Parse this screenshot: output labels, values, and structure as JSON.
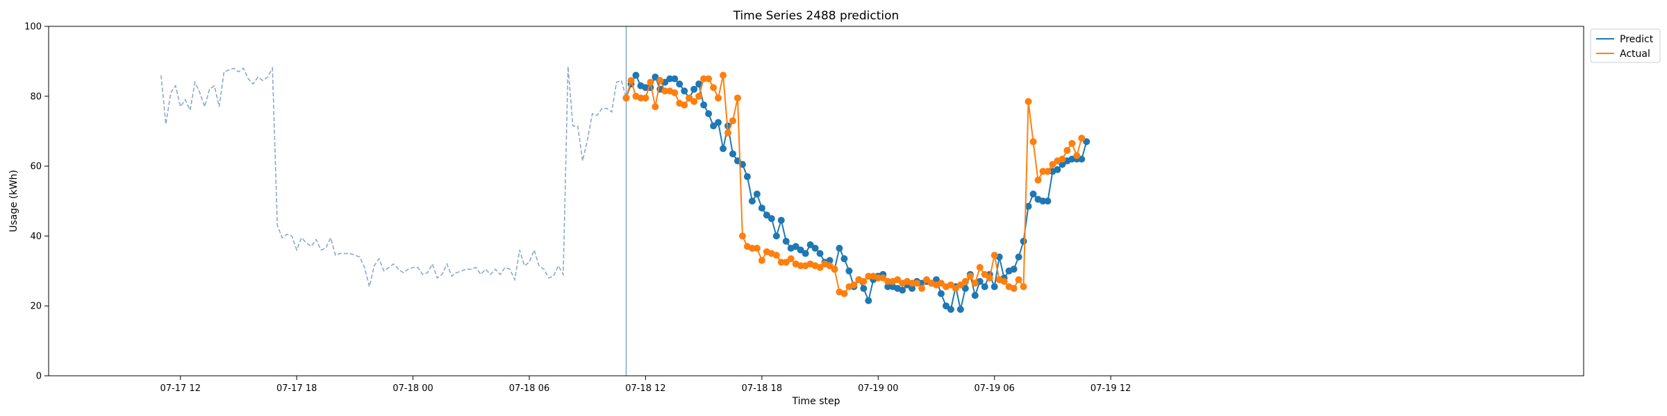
{
  "chart_data": {
    "type": "line",
    "title": "Time Series 2488 prediction",
    "xlabel": "Time step",
    "ylabel": "Usage (kWh)",
    "ylim": [
      0,
      100
    ],
    "yticks": [
      0,
      20,
      40,
      60,
      80,
      100
    ],
    "xlim_hours": [
      -6.8,
      72.4
    ],
    "xticks": [
      {
        "label": "07-17 12",
        "hour": 0
      },
      {
        "label": "07-17 18",
        "hour": 6
      },
      {
        "label": "07-18 00",
        "hour": 12
      },
      {
        "label": "07-18 06",
        "hour": 18
      },
      {
        "label": "07-18 12",
        "hour": 24
      },
      {
        "label": "07-18 18",
        "hour": 30
      },
      {
        "label": "07-19 00",
        "hour": 36
      },
      {
        "label": "07-19 06",
        "hour": 42
      },
      {
        "label": "07-19 12",
        "hour": 48
      }
    ],
    "x_start_hour": -1,
    "x_step_hours": 0.25,
    "history": [
      86.0,
      72.0,
      81.0,
      83.0,
      77.0,
      79.0,
      76.0,
      84.0,
      81.0,
      77.0,
      82.0,
      83.0,
      77.0,
      87.0,
      87.5,
      88.0,
      87.0,
      88.0,
      85.0,
      83.5,
      85.5,
      84.5,
      85.5,
      88.0,
      43.0,
      39.5,
      40.5,
      40.0,
      36.0,
      39.5,
      38.0,
      37.0,
      39.0,
      36.0,
      36.5,
      39.5,
      34.5,
      35.0,
      35.0,
      35.0,
      34.5,
      34.0,
      31.0,
      25.5,
      31.5,
      33.5,
      30.0,
      31.0,
      32.0,
      30.5,
      29.5,
      30.5,
      31.0,
      31.0,
      29.0,
      29.5,
      32.0,
      28.0,
      29.0,
      32.0,
      28.5,
      29.5,
      30.0,
      30.5,
      30.5,
      31.0,
      29.0,
      30.5,
      29.0,
      30.5,
      29.0,
      31.0,
      30.5,
      27.5,
      36.0,
      31.5,
      32.5,
      36.0,
      31.5,
      30.5,
      28.0,
      28.5,
      31.5,
      29.0,
      88.5,
      71.5,
      71.5,
      61.5,
      67.5,
      75.0,
      74.5,
      76.5,
      76.5,
      75.5,
      84.0,
      84.5,
      79.5
    ],
    "forecast_start_hour": 23.0,
    "forecast_start_line_hour": 23.0,
    "series": [
      {
        "name": "Predict",
        "color": "#1f77b4",
        "values": [
          79.5,
          83.5,
          86.0,
          83.0,
          82.5,
          82.5,
          85.5,
          82.0,
          84.0,
          85.0,
          85.0,
          83.5,
          81.5,
          79.5,
          82.0,
          83.5,
          77.5,
          75.0,
          71.5,
          72.5,
          65.0,
          71.5,
          63.5,
          61.5,
          60.5,
          57.0,
          50.0,
          52.0,
          48.0,
          46.0,
          45.0,
          40.0,
          44.5,
          38.5,
          36.5,
          37.0,
          36.0,
          35.0,
          37.5,
          36.5,
          35.0,
          32.5,
          33.0,
          30.5,
          36.5,
          33.5,
          30.0,
          25.5,
          27.5,
          25.0,
          21.5,
          27.5,
          28.5,
          29.0,
          25.5,
          25.5,
          25.0,
          24.5,
          26.0,
          25.0,
          27.0,
          26.5,
          27.0,
          26.5,
          27.5,
          23.5,
          20.0,
          19.0,
          25.5,
          19.0,
          25.0,
          29.0,
          23.0,
          27.0,
          25.5,
          29.0,
          25.5,
          34.0,
          28.0,
          30.0,
          30.5,
          34.0,
          38.5,
          48.5,
          52.0,
          50.5,
          50.0,
          50.0,
          58.5,
          59.0,
          60.5,
          61.5,
          62.0,
          62.0,
          62.0,
          67.0
        ]
      },
      {
        "name": "Actual",
        "color": "#ff7f0e",
        "values": [
          79.5,
          84.5,
          80.0,
          79.5,
          79.5,
          84.0,
          77.0,
          84.5,
          81.5,
          81.5,
          81.0,
          78.0,
          77.5,
          79.5,
          78.5,
          80.0,
          85.0,
          85.0,
          82.5,
          79.5,
          86.0,
          69.5,
          73.0,
          79.5,
          40.0,
          37.0,
          36.5,
          36.5,
          33.0,
          35.5,
          35.0,
          34.5,
          32.5,
          32.5,
          33.5,
          32.0,
          31.5,
          31.5,
          32.0,
          31.5,
          31.0,
          32.0,
          31.5,
          30.5,
          24.0,
          23.5,
          25.5,
          26.0,
          27.5,
          27.0,
          28.5,
          28.5,
          28.0,
          28.0,
          27.0,
          27.0,
          27.5,
          26.5,
          27.0,
          26.5,
          26.5,
          25.0,
          27.5,
          26.5,
          26.0,
          26.5,
          25.5,
          26.0,
          25.0,
          26.0,
          27.0,
          28.5,
          26.5,
          31.0,
          29.0,
          28.0,
          34.5,
          27.5,
          27.0,
          25.5,
          25.0,
          27.5,
          25.5,
          78.5,
          67.0,
          56.0,
          58.5,
          58.5,
          60.5,
          61.5,
          62.0,
          64.5,
          66.5,
          63.0,
          68.0
        ]
      }
    ],
    "legend": {
      "placement": "top-right-outside",
      "entries": [
        "Predict",
        "Actual"
      ]
    },
    "grid": false
  }
}
